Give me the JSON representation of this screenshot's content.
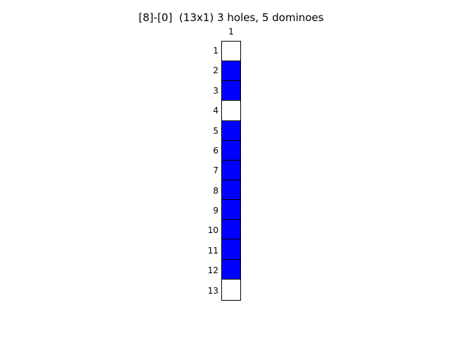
{
  "figure": {
    "title": "[8]-[0]  (13x1) 3 holes, 5 dominoes",
    "column_labels": [
      "1"
    ],
    "row_labels": [
      "1",
      "2",
      "3",
      "4",
      "5",
      "6",
      "7",
      "8",
      "9",
      "10",
      "11",
      "12",
      "13"
    ]
  },
  "colors": {
    "filled": "#0000ff",
    "hole": "#ffffff"
  },
  "cells": [
    {
      "row": "1",
      "state": "hole"
    },
    {
      "row": "2",
      "state": "filled"
    },
    {
      "row": "3",
      "state": "filled"
    },
    {
      "row": "4",
      "state": "hole"
    },
    {
      "row": "5",
      "state": "filled"
    },
    {
      "row": "6",
      "state": "filled"
    },
    {
      "row": "7",
      "state": "filled"
    },
    {
      "row": "8",
      "state": "filled"
    },
    {
      "row": "9",
      "state": "filled"
    },
    {
      "row": "10",
      "state": "filled"
    },
    {
      "row": "11",
      "state": "filled"
    },
    {
      "row": "12",
      "state": "filled"
    },
    {
      "row": "13",
      "state": "hole"
    }
  ]
}
